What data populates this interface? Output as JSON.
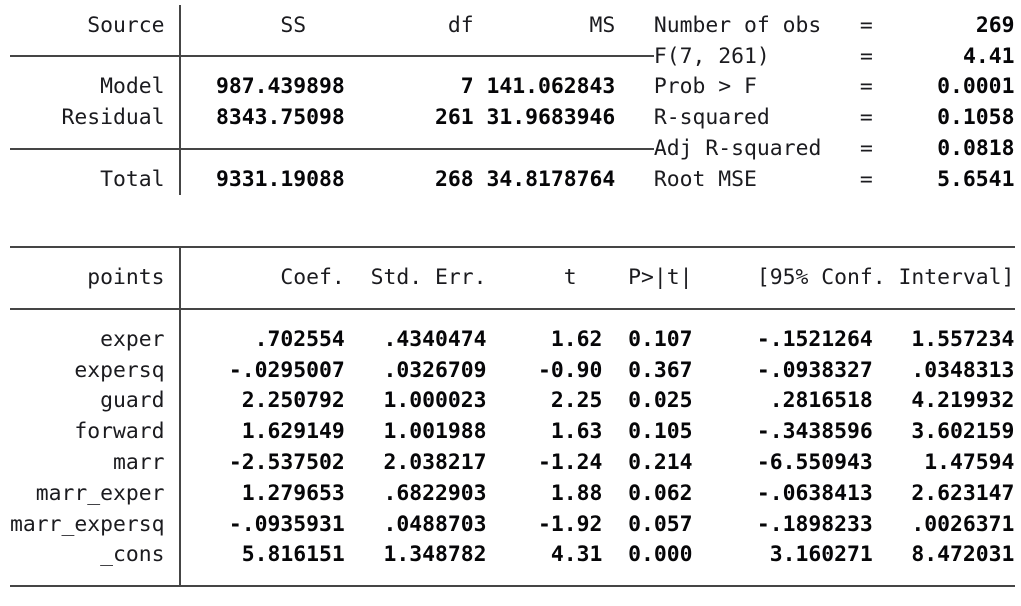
{
  "anova": {
    "header": {
      "source": "Source",
      "ss": "SS",
      "df": "df",
      "ms": "MS"
    },
    "rows": [
      {
        "source": "Model",
        "ss": "987.439898",
        "df": "7",
        "ms": "141.062843"
      },
      {
        "source": "Residual",
        "ss": "8343.75098",
        "df": "261",
        "ms": "31.9683946"
      },
      {
        "source": "Total",
        "ss": "9331.19088",
        "df": "268",
        "ms": "34.8178764"
      }
    ]
  },
  "summary_stats": [
    {
      "label": "Number of obs",
      "eq": "=",
      "value": "269"
    },
    {
      "label": "F(7, 261)",
      "eq": "=",
      "value": "4.41"
    },
    {
      "label": "Prob > F",
      "eq": "=",
      "value": "0.0001"
    },
    {
      "label": "R-squared",
      "eq": "=",
      "value": "0.1058"
    },
    {
      "label": "Adj R-squared",
      "eq": "=",
      "value": "0.0818"
    },
    {
      "label": "Root MSE",
      "eq": "=",
      "value": "5.6541"
    }
  ],
  "coefficients": {
    "header": {
      "depvar": "points",
      "coef": "Coef.",
      "std_err": "Std. Err.",
      "t": "t",
      "p": "P>|t|",
      "ci": "[95% Conf. Interval]"
    },
    "rows": [
      {
        "var": "exper",
        "coef": ".702554",
        "se": ".4340474",
        "t": "1.62",
        "p": "0.107",
        "lo": "-.1521264",
        "hi": "1.557234"
      },
      {
        "var": "expersq",
        "coef": "-.0295007",
        "se": ".0326709",
        "t": "-0.90",
        "p": "0.367",
        "lo": "-.0938327",
        "hi": ".0348313"
      },
      {
        "var": "guard",
        "coef": "2.250792",
        "se": "1.000023",
        "t": "2.25",
        "p": "0.025",
        "lo": ".2816518",
        "hi": "4.219932"
      },
      {
        "var": "forward",
        "coef": "1.629149",
        "se": "1.001988",
        "t": "1.63",
        "p": "0.105",
        "lo": "-.3438596",
        "hi": "3.602159"
      },
      {
        "var": "marr",
        "coef": "-2.537502",
        "se": "2.038217",
        "t": "-1.24",
        "p": "0.214",
        "lo": "-6.550943",
        "hi": "1.47594"
      },
      {
        "var": "marr_exper",
        "coef": "1.279653",
        "se": ".6822903",
        "t": "1.88",
        "p": "0.062",
        "lo": "-.0638413",
        "hi": "2.623147"
      },
      {
        "var": "marr_expersq",
        "coef": "-.0935931",
        "se": ".0488703",
        "t": "-1.92",
        "p": "0.057",
        "lo": "-.1898233",
        "hi": ".0026371"
      },
      {
        "var": "_cons",
        "coef": "5.816151",
        "se": "1.348782",
        "t": "4.31",
        "p": "0.000",
        "lo": "3.160271",
        "hi": "8.472031"
      }
    ]
  },
  "colors": {
    "text": "#1b1b1f",
    "result": "#060608",
    "line": "#454545",
    "background": "#ffffff"
  }
}
